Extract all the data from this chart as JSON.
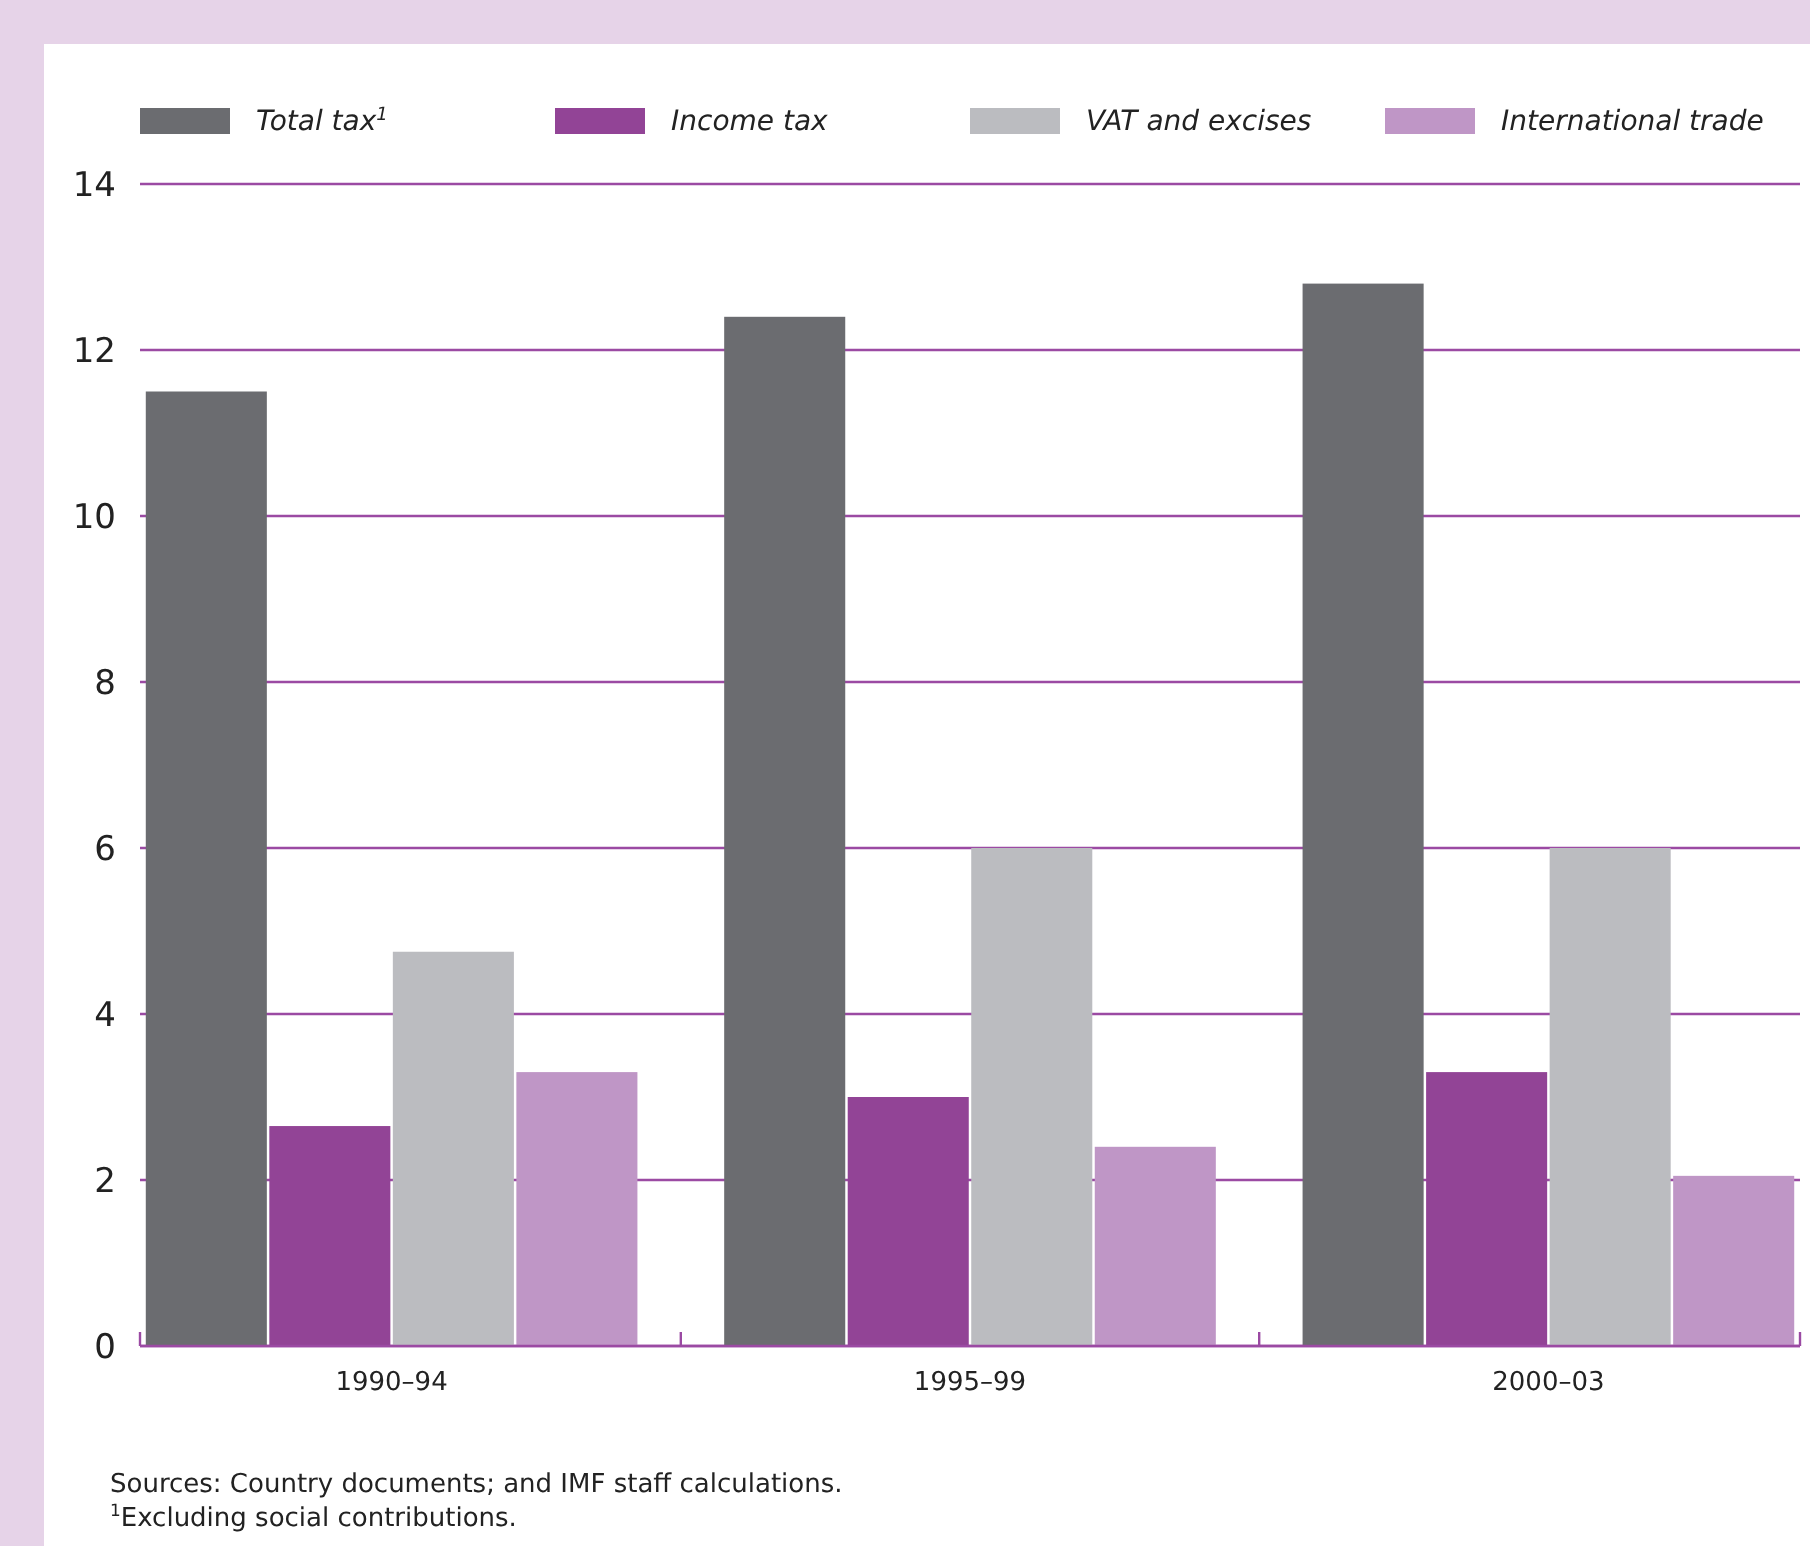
{
  "chart_data": {
    "type": "bar",
    "categories": [
      "1990–94",
      "1995–99",
      "2000–03"
    ],
    "series": [
      {
        "name": "Total tax$^{1}$",
        "color": "#6b6c70",
        "values": [
          11.5,
          12.4,
          12.8
        ]
      },
      {
        "name": "Income tax",
        "color": "#924496",
        "values": [
          2.65,
          3.0,
          3.3
        ]
      },
      {
        "name": "VAT and excises",
        "color": "#bbbcc0",
        "values": [
          4.75,
          6.0,
          6.0
        ]
      },
      {
        "name": "International trade",
        "color": "#bf96c6",
        "values": [
          3.3,
          2.4,
          2.05
        ]
      }
    ],
    "ylim": [
      0,
      14
    ],
    "yticks": [
      0,
      2,
      4,
      6,
      8,
      10,
      12,
      14
    ],
    "grid": "y",
    "legend": "top",
    "annotations": [
      "Sources: Country documents; and IMF staff calculations.",
      "$^{1}$Excluding social contributions."
    ]
  }
}
